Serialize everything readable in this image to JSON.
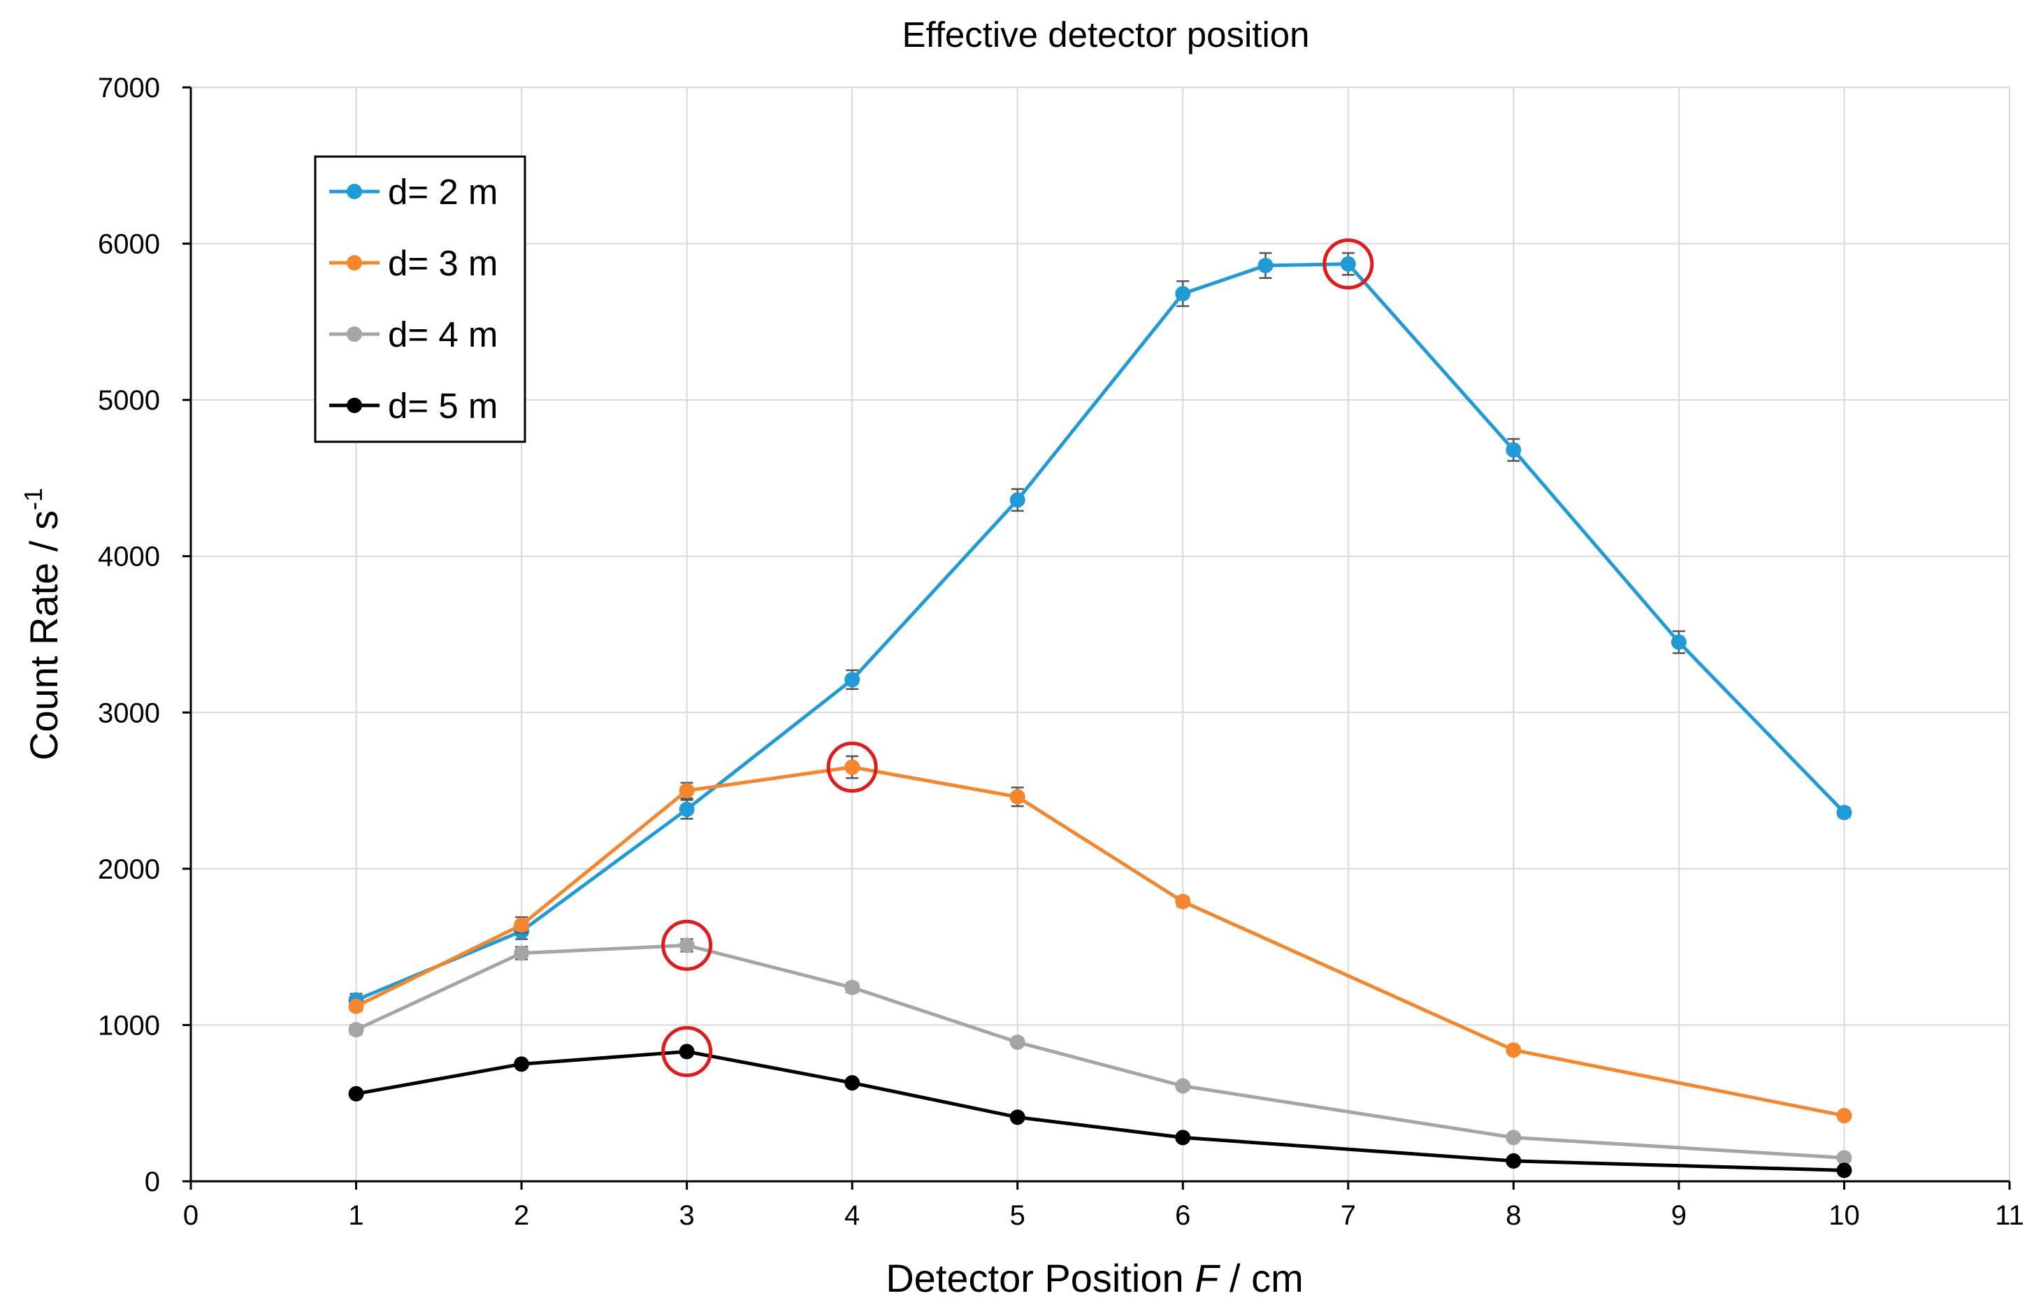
{
  "chart_data": {
    "type": "line",
    "title": "Effective detector position",
    "xlabel": {
      "prefix": "Detector Position ",
      "var": "F",
      "suffix": " / cm"
    },
    "ylabel": {
      "main": "Count Rate / s",
      "sup": "-1"
    },
    "xlim": [
      0,
      11
    ],
    "ylim": [
      0,
      7000
    ],
    "xticks": [
      0,
      1,
      2,
      3,
      4,
      5,
      6,
      7,
      8,
      9,
      10,
      11
    ],
    "yticks": [
      0,
      1000,
      2000,
      3000,
      4000,
      5000,
      6000,
      7000
    ],
    "grid": true,
    "legend_position": "top-left",
    "series": [
      {
        "name": "d= 2 m",
        "color": "#1f9bd7",
        "x": [
          1,
          2,
          3,
          4,
          5,
          6,
          6.5,
          7,
          8,
          9,
          10
        ],
        "y": [
          1160,
          1600,
          2380,
          3210,
          4360,
          5680,
          5860,
          5870,
          4680,
          3450,
          2360
        ],
        "err": [
          40,
          50,
          60,
          60,
          70,
          80,
          80,
          70,
          70,
          70,
          30
        ]
      },
      {
        "name": "d= 3 m",
        "color": "#f5862b",
        "x": [
          1,
          2,
          3,
          4,
          5,
          6,
          8,
          10
        ],
        "y": [
          1120,
          1640,
          2500,
          2650,
          2460,
          1790,
          840,
          420
        ],
        "err": [
          30,
          50,
          50,
          70,
          60,
          30,
          20,
          20
        ]
      },
      {
        "name": "d= 4 m",
        "color": "#a5a5a5",
        "x": [
          1,
          2,
          3,
          4,
          5,
          6,
          8,
          10
        ],
        "y": [
          970,
          1460,
          1510,
          1240,
          890,
          610,
          280,
          150
        ],
        "err": [
          30,
          40,
          40,
          30,
          20,
          20,
          10,
          10
        ]
      },
      {
        "name": "d= 5 m",
        "color": "#000000",
        "x": [
          1,
          2,
          3,
          4,
          5,
          6,
          8,
          10
        ],
        "y": [
          560,
          750,
          830,
          630,
          410,
          280,
          130,
          70
        ],
        "err": [
          10,
          10,
          10,
          10,
          10,
          10,
          10,
          10
        ]
      }
    ],
    "annotations": [
      {
        "type": "circle",
        "series": "d= 2 m",
        "x": 7,
        "y": 5870,
        "color": "#e31a1c"
      },
      {
        "type": "circle",
        "series": "d= 3 m",
        "x": 4,
        "y": 2650,
        "color": "#e31a1c"
      },
      {
        "type": "circle",
        "series": "d= 4 m",
        "x": 3,
        "y": 1510,
        "color": "#e31a1c"
      },
      {
        "type": "circle",
        "series": "d= 5 m",
        "x": 3,
        "y": 830,
        "color": "#e31a1c"
      }
    ]
  }
}
